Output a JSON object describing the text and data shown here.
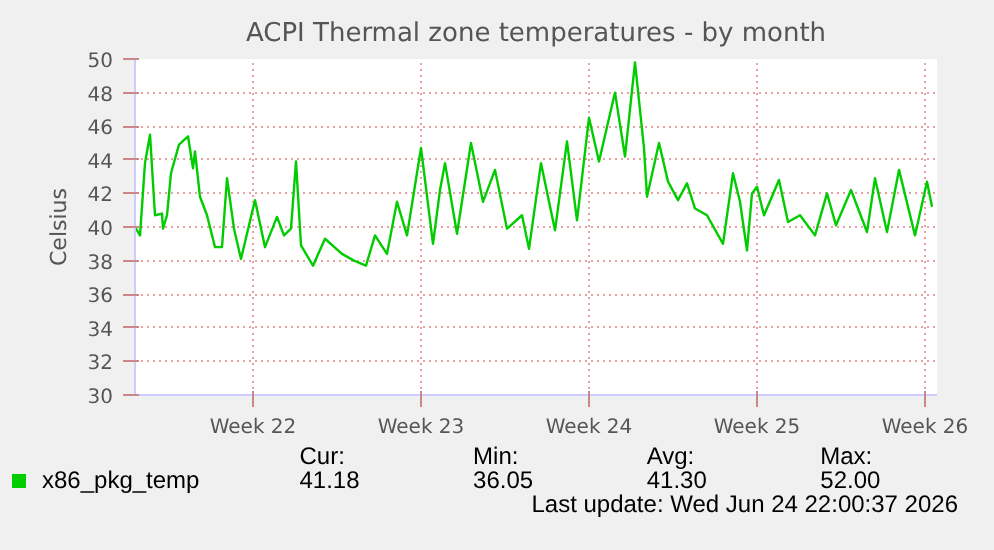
{
  "chart_data": {
    "type": "line",
    "title": "ACPI Thermal zone temperatures - by month",
    "ylabel": "Celsius",
    "xlim": [
      "2026-05-20T02:00",
      "2026-06-22T12:00"
    ],
    "xticks": [
      {
        "value": "2026-05-25",
        "label": "Week 22"
      },
      {
        "value": "2026-06-01",
        "label": "Week 23"
      },
      {
        "value": "2026-06-08",
        "label": "Week 24"
      },
      {
        "value": "2026-06-15",
        "label": "Week 25"
      },
      {
        "value": "2026-06-22",
        "label": "Week 26"
      }
    ],
    "ylim": [
      30,
      50
    ],
    "yticks": [
      30,
      32,
      34,
      36,
      38,
      40,
      42,
      44,
      46,
      48,
      50
    ],
    "grid": true,
    "legend": "bottom",
    "line_style": "solid",
    "marker": "none",
    "series": [
      {
        "name": "x86_pkg_temp",
        "color": "#00cc00",
        "x": [
          "2026-05-20T02:00",
          "2026-05-20T07:00",
          "2026-05-20T12:00",
          "2026-05-20T17:00",
          "2026-05-20T22:00",
          "2026-05-21T05:00",
          "2026-05-21T06:00",
          "2026-05-21T10:00",
          "2026-05-21T14:00",
          "2026-05-21T22:00",
          "2026-05-22T07:00",
          "2026-05-22T12:00",
          "2026-05-22T14:00",
          "2026-05-22T19:00",
          "2026-05-23T02:00",
          "2026-05-23T10:00",
          "2026-05-23T17:00",
          "2026-05-23T22:00",
          "2026-05-24T05:00",
          "2026-05-24T12:00",
          "2026-05-25T02:00",
          "2026-05-25T12:00",
          "2026-05-26T00:00",
          "2026-05-26T07:00",
          "2026-05-26T14:00",
          "2026-05-26T19:00",
          "2026-05-27T00:00",
          "2026-05-27T12:00",
          "2026-05-28T00:00",
          "2026-05-28T17:00",
          "2026-05-29T05:00",
          "2026-05-29T17:00",
          "2026-05-30T02:00",
          "2026-05-30T14:00",
          "2026-05-31T00:00",
          "2026-05-31T10:00",
          "2026-06-01T00:00",
          "2026-06-01T12:00",
          "2026-06-01T19:00",
          "2026-06-02T00:00",
          "2026-06-02T12:00",
          "2026-06-03T02:00",
          "2026-06-03T14:00",
          "2026-06-04T02:00",
          "2026-06-04T14:00",
          "2026-06-05T05:00",
          "2026-06-05T12:00",
          "2026-06-06T00:00",
          "2026-06-06T14:00",
          "2026-06-07T02:00",
          "2026-06-07T12:00",
          "2026-06-08T00:00",
          "2026-06-08T10:00",
          "2026-06-09T02:00",
          "2026-06-09T12:00",
          "2026-06-09T22:00",
          "2026-06-10T07:00",
          "2026-06-10T10:00",
          "2026-06-10T22:00",
          "2026-06-11T07:00",
          "2026-06-11T17:00",
          "2026-06-12T02:00",
          "2026-06-12T10:00",
          "2026-06-12T22:00",
          "2026-06-13T14:00",
          "2026-06-14T00:00",
          "2026-06-14T07:00",
          "2026-06-14T14:00",
          "2026-06-14T19:00",
          "2026-06-15T00:00",
          "2026-06-15T07:00",
          "2026-06-15T22:00",
          "2026-06-16T07:00",
          "2026-06-16T19:00",
          "2026-06-17T10:00",
          "2026-06-17T22:00",
          "2026-06-18T07:00",
          "2026-06-18T22:00",
          "2026-06-19T14:00",
          "2026-06-19T22:00",
          "2026-06-20T10:00",
          "2026-06-20T22:00",
          "2026-06-21T14:00",
          "2026-06-22T02:00",
          "2026-06-22T07:00"
        ],
        "values": [
          40.0,
          39.5,
          43.8,
          45.5,
          40.7,
          40.8,
          39.9,
          40.7,
          43.2,
          44.9,
          45.4,
          43.5,
          44.5,
          41.8,
          40.7,
          38.8,
          38.8,
          42.9,
          39.9,
          38.1,
          41.6,
          38.8,
          40.6,
          39.5,
          39.9,
          43.9,
          38.9,
          37.7,
          39.3,
          38.4,
          38.0,
          37.7,
          39.5,
          38.4,
          41.5,
          39.5,
          44.7,
          39.0,
          42.2,
          43.8,
          39.6,
          45.0,
          41.5,
          43.4,
          39.9,
          40.7,
          38.7,
          43.8,
          39.8,
          45.1,
          40.4,
          46.5,
          43.9,
          48.0,
          44.2,
          49.8,
          44.7,
          41.8,
          45.0,
          42.7,
          41.6,
          42.6,
          41.1,
          40.7,
          39.0,
          43.2,
          41.5,
          38.6,
          42.0,
          42.4,
          40.7,
          42.8,
          40.3,
          40.7,
          39.5,
          42.0,
          40.1,
          42.2,
          39.7,
          42.9,
          39.7,
          43.4,
          39.5,
          42.7,
          41.2
        ]
      }
    ],
    "annotations": [
      "Cur:",
      "Min:",
      "Avg:",
      "Max:",
      "41.18",
      "36.05",
      "41.30",
      "52.00",
      "Last update: Wed Jun 24 22:00:37 2026"
    ]
  }
}
